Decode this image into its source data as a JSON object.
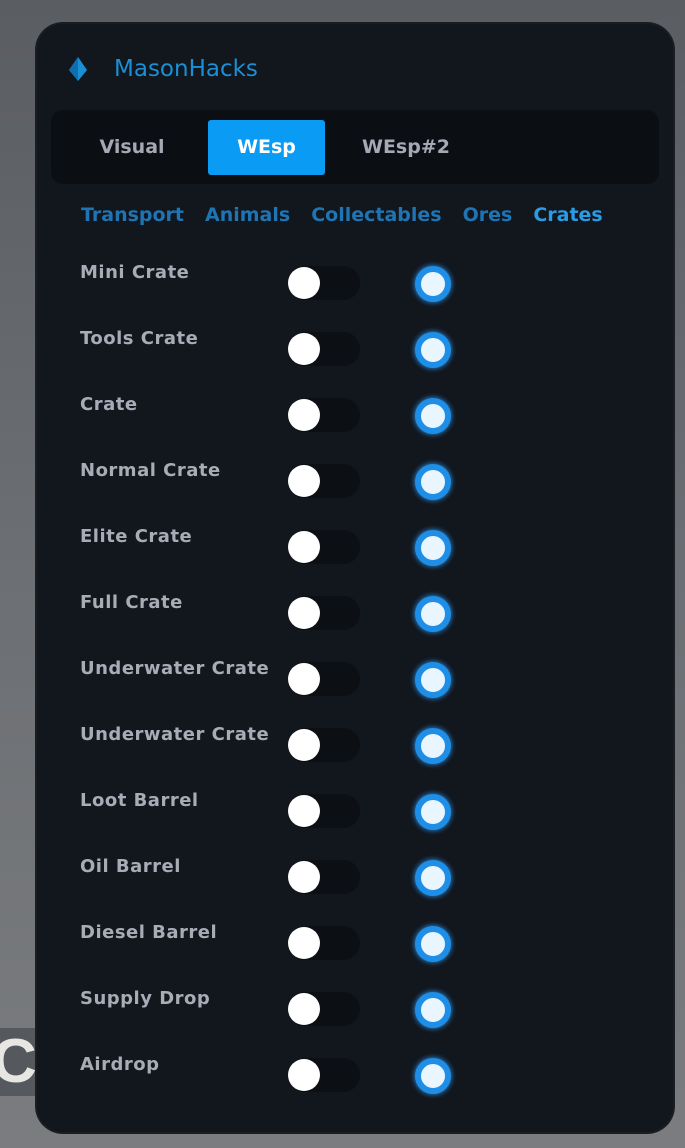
{
  "background_text": "CT",
  "app": {
    "title": "MasonHacks",
    "logo_icon": "diamond-logo-icon",
    "accent": "#0a9cf5"
  },
  "tabs": [
    {
      "label": "Visual",
      "active": false
    },
    {
      "label": "WEsp",
      "active": true
    },
    {
      "label": "WEsp#2",
      "active": false
    }
  ],
  "subtabs": [
    {
      "label": "Transport"
    },
    {
      "label": "Animals"
    },
    {
      "label": "Collectables"
    },
    {
      "label": "Ores"
    },
    {
      "label": "Crates",
      "active": true
    }
  ],
  "items": [
    {
      "label": "Mini Crate",
      "toggle": false,
      "radio": true
    },
    {
      "label": "Tools Crate",
      "toggle": false,
      "radio": true
    },
    {
      "label": "Crate",
      "toggle": false,
      "radio": true
    },
    {
      "label": "Normal Crate",
      "toggle": false,
      "radio": true
    },
    {
      "label": "Elite Crate",
      "toggle": false,
      "radio": true
    },
    {
      "label": "Full Crate",
      "toggle": false,
      "radio": true
    },
    {
      "label": "Underwater Crate",
      "toggle": false,
      "radio": true
    },
    {
      "label": "Underwater Crate",
      "toggle": false,
      "radio": true
    },
    {
      "label": "Loot Barrel",
      "toggle": false,
      "radio": true
    },
    {
      "label": "Oil Barrel",
      "toggle": false,
      "radio": true
    },
    {
      "label": "Diesel Barrel",
      "toggle": false,
      "radio": true
    },
    {
      "label": "Supply Drop",
      "toggle": false,
      "radio": true
    },
    {
      "label": "Airdrop",
      "toggle": false,
      "radio": true
    }
  ]
}
